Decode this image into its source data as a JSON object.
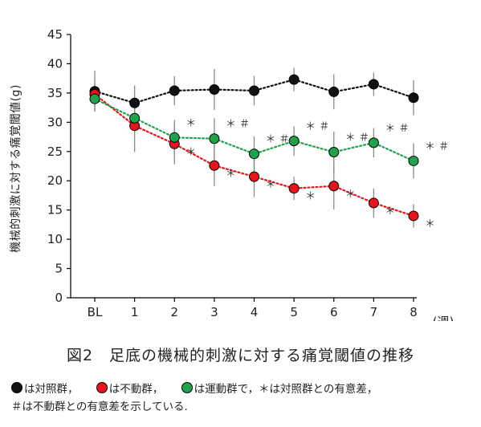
{
  "chart_data": {
    "type": "line",
    "title": "",
    "xlabel": "(週)",
    "ylabel": "機械的刺激に対する痛覚閾値(g)",
    "categories": [
      "BL",
      "1",
      "2",
      "3",
      "4",
      "5",
      "6",
      "7",
      "8"
    ],
    "ylim": [
      0,
      45
    ],
    "yticks": [
      0,
      5,
      10,
      15,
      20,
      25,
      30,
      35,
      40,
      45
    ],
    "grid": false,
    "series": [
      {
        "name": "対照群",
        "color": "#111111",
        "values": [
          35.3,
          33.3,
          35.4,
          35.6,
          35.4,
          37.3,
          35.2,
          36.5,
          34.2
        ],
        "error": [
          3.5,
          3.0,
          2.5,
          3.5,
          2.5,
          2.0,
          3.0,
          2.0,
          3.0
        ],
        "marks": [
          "",
          "",
          "",
          "",
          "",
          "",
          "",
          "",
          ""
        ]
      },
      {
        "name": "不動群",
        "color": "#e8141b",
        "values": [
          34.8,
          29.4,
          26.3,
          22.6,
          20.7,
          18.7,
          19.1,
          16.2,
          14.0
        ],
        "error": [
          2.0,
          4.5,
          3.5,
          3.5,
          3.5,
          2.0,
          4.0,
          2.5,
          2.0
        ],
        "marks": [
          "",
          "",
          "＊",
          "＊",
          "＊",
          "＊",
          "＊",
          "＊",
          "＊"
        ]
      },
      {
        "name": "運動群",
        "color": "#1fa34a",
        "values": [
          34.0,
          30.7,
          27.4,
          27.2,
          24.6,
          26.8,
          24.9,
          26.5,
          23.4
        ],
        "error": [
          2.0,
          2.5,
          3.0,
          3.5,
          3.0,
          2.5,
          3.5,
          2.5,
          3.0
        ],
        "marks": [
          "",
          "",
          "＊",
          "＊ ＃",
          "＊ ＃",
          "＊ ＃",
          "＊ ＃",
          "＊ ＃",
          "＊ ＃"
        ]
      }
    ]
  },
  "caption": "図2　足底の機械的刺激に対する痛覚閾値の推移",
  "notes": {
    "legend": [
      {
        "label": "は対照群，",
        "color": "#111111"
      },
      {
        "label": "は不動群，",
        "color": "#e8141b"
      },
      {
        "label": "は運動群で，＊は対照群との有意差，",
        "color": "#1fa34a"
      }
    ],
    "line2": "＃は不動群との有意差を示している."
  }
}
